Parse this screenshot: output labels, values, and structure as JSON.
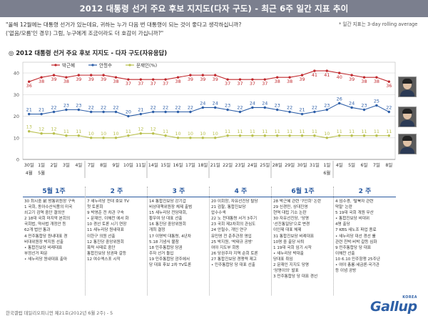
{
  "header": {
    "title": "2012 대통령 선거 주요 후보 지지도(다자 구도) - 최근 6주 일간 지표 추이",
    "question_line1": "\"올해 12월에는 대통령 선거가 있는데요, 귀하는 누가 다음 번 대통령이 되는 것이 좋다고 생각하십니까?",
    "question_line2": "('없음/모름'인 경우) 그럼, 누구에게 조금이라도 더 호감이 가십니까?\"",
    "note": "* 일간 지표는 3-day rolling average",
    "subtitle": "◎ 2012 대통령 선거 주요 후보 지지도 - 다자 구도(자유응답)"
  },
  "chart_data": {
    "type": "line",
    "title": "2012 대통령 선거 주요 후보 지지도 - 다자 구도(자유응답)",
    "ylim": [
      0,
      45
    ],
    "yticks": [
      0,
      10,
      20,
      30,
      40
    ],
    "legend_position": "top-left",
    "x": [
      "30일",
      "1일",
      "2일",
      "3일",
      "4일",
      "7일",
      "8일",
      "9일",
      "10일",
      "11일",
      "14일",
      "15일",
      "16일",
      "17일",
      "18일",
      "21일",
      "22일",
      "23일",
      "24일",
      "25일",
      "28일",
      "29일",
      "30일",
      "31일",
      "1일",
      "4일",
      "5일",
      "6일",
      "7일",
      "8일"
    ],
    "month_labels": [
      {
        "index": 0,
        "text": "4월"
      },
      {
        "index": 1,
        "text": "5월"
      },
      {
        "index": 24,
        "text": "6월"
      }
    ],
    "series": [
      {
        "name": "박근혜",
        "color": "#c0282d",
        "values": [
          36,
          38,
          39,
          38,
          39,
          39,
          39,
          38,
          37,
          37,
          37,
          37,
          38,
          39,
          39,
          39,
          37,
          37,
          37,
          37,
          38,
          38,
          39,
          41,
          41,
          40,
          39,
          38,
          38,
          36
        ]
      },
      {
        "name": "안철수",
        "color": "#2e5fa8",
        "values": [
          21,
          21,
          22,
          23,
          23,
          22,
          22,
          22,
          20,
          21,
          22,
          22,
          22,
          22,
          24,
          24,
          23,
          22,
          24,
          24,
          23,
          22,
          21,
          22,
          23,
          26,
          24,
          23,
          25,
          22
        ]
      },
      {
        "name": "문재인(%)",
        "color": "#b8bf4c",
        "values": [
          13,
          12,
          12,
          11,
          11,
          10,
          10,
          10,
          11,
          12,
          12,
          11,
          10,
          10,
          10,
          10,
          11,
          11,
          11,
          11,
          11,
          11,
          11,
          11,
          10,
          11,
          11,
          11,
          11,
          11
        ]
      }
    ]
  },
  "weeks": [
    {
      "label": "5월 1주",
      "items": [
        "30 최시중 前 방통위원장 구속",
        "1 국회, 동아수산식품의 미국",
        "  쇠고기 검역 중단 결의안",
        "2 18대 국회 마지막 본회의",
        "  국회법, 약사법 개정안 등",
        "  62개 법안 통과",
        "4 민주통합당 원내대표 경",
        "  비대위원장 박지원 선출",
        "  • 통합진보당 비례대표",
        "    부정선거 파문",
        "  • 새누리당 원내대표 출마"
      ]
    },
    {
      "label": "2 주",
      "items": [
        "7 새누리당 전대 호보 TV",
        "  첫 토론회",
        "9 박영준 전 차관 구속",
        "  • 문재인, 이해찬 에서 화",
        "10 경선 토론 시기 연장",
        "11 새누리당 원내대표",
        "   이한구 의원 선출",
        "12 통진당 중앙위원회",
        "   폭력 사태로 중단",
        "   통합진보당 당권파 갈등",
        "12 여수엑스포 시작"
      ]
    },
    {
      "label": "3 주",
      "items": [
        "14 통합진보당 강기갑",
        "   비상대책위원장 체제 출범",
        "15 새누리당 전당대회,",
        "   황우여 당 대표 선출",
        "16 통진당 중앙위원회",
        "   개최 결정",
        "17 이명박 대통령, 4년차",
        "   5.18 기념식 불참",
        "18 민주통합당 당권",
        "   주자 선거 돌입",
        "19 민주통합당 광주에서",
        "   당 대표 후보 2차 TV토론"
      ]
    },
    {
      "label": "4 주",
      "items": [
        "20 이회창, 자유선진당 탈당",
        "21 검찰, 통합진보당",
        "   압수수색",
        "22 노 전대통령 서거 3주기",
        "23 국회 제2차회의 관심도",
        "24 안철수, 개인 연구",
        "   유민영 전 춘추관장 영입",
        "25 박지원, '박태규 공방'",
        "   여야 지도부 회동",
        "26 당권주자 지역 순회 토론",
        "27 통합진보당 경쟁력 제고",
        "   • 민주통합당 당 대표 선출"
      ]
    },
    {
      "label": "6월 1주",
      "items": [
        "28 박근혜 관련 '7인회' 논란",
        "29 신경민, 상대진영",
        "   현역 대립 기소 논란",
        "30 자유선진당, '당명",
        "   '선진통일당'으로 변경",
        "   이인제 대표 체제",
        "31 통합진보당 비례대표",
        "   10명 중 출당 사퇴",
        "1 19대 국회 임기 시작",
        "   • 새누리당 박대출",
        "   당대표 취임",
        "2 문재인 지지도 당명",
        "   '당명이의' 발표",
        "3 민주통합당 당 대표 경선"
      ]
    },
    {
      "label": "2 주",
      "items": [
        "4 임수경, '탈북자 관련",
        "  막말' 논란",
        "5 19대 국회 개원 무산",
        "  • 통합진보당 비대위",
        "    4명 출당",
        "7 KBS 새노조 파업 종료",
        "  • 새누리당 대선 경선 룰",
        "  관련 친박·비박 갈등 심화",
        "9 민주통합당 당 대표",
        "  이해찬 선출",
        "10 6.10 민주항쟁 25주년",
        "  • 여야 총룡·세금론·국가관",
        "    등 이념 공방"
      ]
    }
  ],
  "footer": "한국갤럽 데일리오피니언 제21호(2012년 6월 2주) - 5",
  "logo": {
    "main": "Gallup",
    "sub": "KOREA"
  },
  "photos": [
    {
      "icon": "portrait-park-geunhye"
    },
    {
      "icon": "portrait-ahn-cheolsoo"
    },
    {
      "icon": "portrait-moon-jaein"
    }
  ]
}
